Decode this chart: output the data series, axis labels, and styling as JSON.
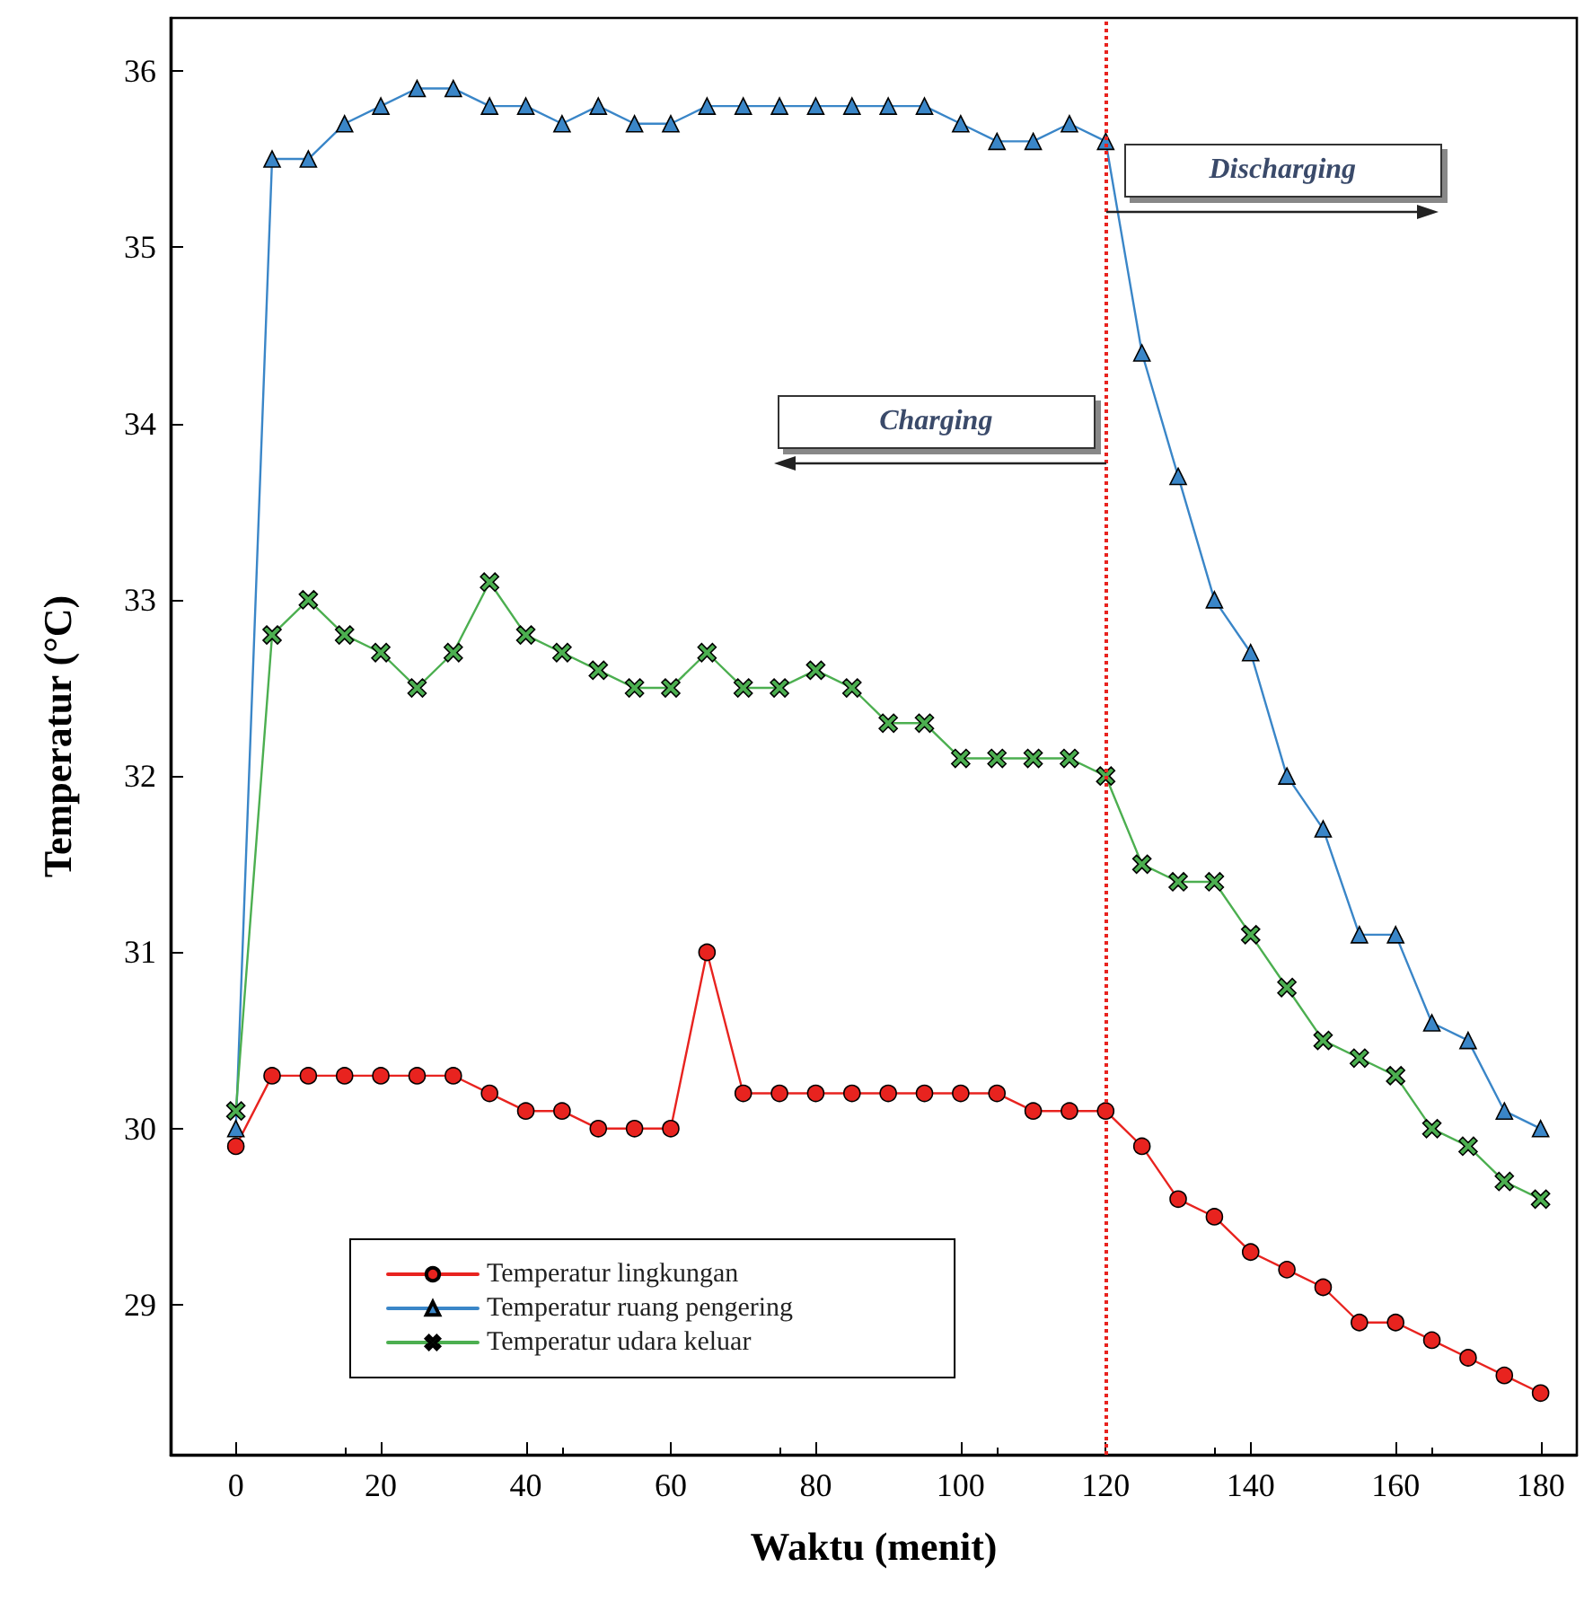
{
  "chart_data": {
    "type": "line",
    "xlabel": "Waktu (menit)",
    "ylabel": "Temperatur (°C)",
    "x": [
      0,
      5,
      10,
      15,
      20,
      25,
      30,
      35,
      40,
      45,
      50,
      55,
      60,
      65,
      70,
      75,
      80,
      85,
      90,
      95,
      100,
      105,
      110,
      115,
      120,
      125,
      130,
      135,
      140,
      145,
      150,
      155,
      160,
      165,
      170,
      175,
      180
    ],
    "series": [
      {
        "name": "Temperatur lingkungan",
        "color": "#e8231f",
        "marker": "circle",
        "values": [
          29.9,
          30.3,
          30.3,
          30.3,
          30.3,
          30.3,
          30.3,
          30.2,
          30.1,
          30.1,
          30.0,
          30.0,
          30.0,
          31.0,
          30.2,
          30.2,
          30.2,
          30.2,
          30.2,
          30.2,
          30.2,
          30.2,
          30.1,
          30.1,
          30.1,
          29.9,
          29.6,
          29.5,
          29.3,
          29.2,
          29.1,
          28.9,
          28.9,
          28.8,
          28.7,
          28.6,
          28.5
        ]
      },
      {
        "name": "Temperatur ruang pengering",
        "color": "#3a86c8",
        "marker": "triangle",
        "values": [
          30.0,
          35.5,
          35.5,
          35.7,
          35.8,
          35.9,
          35.9,
          35.8,
          35.8,
          35.7,
          35.8,
          35.7,
          35.7,
          35.8,
          35.8,
          35.8,
          35.8,
          35.8,
          35.8,
          35.8,
          35.7,
          35.6,
          35.6,
          35.7,
          35.6,
          34.4,
          33.7,
          33.0,
          32.7,
          32.0,
          31.7,
          31.1,
          31.1,
          30.6,
          30.5,
          30.1,
          30.0
        ]
      },
      {
        "name": "Temperatur udara keluar",
        "color": "#4caf50",
        "marker": "cross",
        "values": [
          30.1,
          32.8,
          33.0,
          32.8,
          32.7,
          32.5,
          32.7,
          33.1,
          32.8,
          32.7,
          32.6,
          32.5,
          32.5,
          32.7,
          32.5,
          32.5,
          32.6,
          32.5,
          32.3,
          32.3,
          32.1,
          32.1,
          32.1,
          32.1,
          32.0,
          31.5,
          31.4,
          31.4,
          31.1,
          30.8,
          30.5,
          30.4,
          30.3,
          30.0,
          29.9,
          29.7,
          29.6
        ]
      }
    ],
    "xlim": [
      -9,
      185
    ],
    "xticks": [
      0,
      20,
      40,
      60,
      80,
      100,
      120,
      140,
      160,
      180
    ],
    "ylim": [
      28.15,
      36.3
    ],
    "yticks": [
      29,
      30,
      31,
      32,
      33,
      34,
      35,
      36
    ],
    "ref_lines": [
      {
        "axis": "x",
        "value": 120,
        "color": "#e8231f",
        "line_style": "dotted"
      }
    ],
    "annotations": [
      "Charging",
      "Discharging"
    ],
    "grid": false,
    "legend": "bottom left",
    "line_style": "solid"
  }
}
